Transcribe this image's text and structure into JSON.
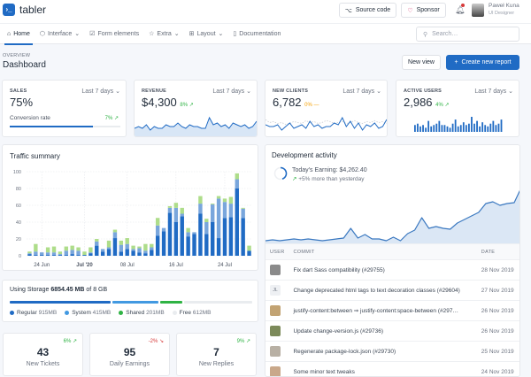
{
  "header": {
    "brand": "tabler",
    "source_code": "Source code",
    "sponsor": "Sponsor",
    "user_name": "Paweł Kuna",
    "user_role": "UI Designer"
  },
  "nav": {
    "items": [
      {
        "label": "Home",
        "active": true
      },
      {
        "label": "Interface",
        "dropdown": true
      },
      {
        "label": "Form elements"
      },
      {
        "label": "Extra",
        "dropdown": true
      },
      {
        "label": "Layout",
        "dropdown": true
      },
      {
        "label": "Documentation"
      }
    ],
    "search_placeholder": "Search…"
  },
  "page": {
    "pretitle": "OVERVIEW",
    "title": "Dashboard",
    "new_view": "New view",
    "create_report": "Create new report"
  },
  "colors": {
    "primary": "#206bc4",
    "primary_light": "#79a6dc",
    "green": "#2fb344",
    "light_green": "#aedd8a",
    "red": "#d63939",
    "orange": "#f59f00",
    "gray": "#e9ecef"
  },
  "stats": [
    {
      "label": "SALES",
      "range": "Last 7 days",
      "value": "75%",
      "sub_label": "Conversion rate",
      "change": "7%",
      "trend": "up",
      "progress": 75
    },
    {
      "label": "REVENUE",
      "range": "Last 7 days",
      "value": "$4,300",
      "change": "8%",
      "trend": "up",
      "spark": [
        4,
        5,
        4,
        6,
        3,
        5,
        4,
        4,
        6,
        5,
        5,
        7,
        5,
        4,
        6,
        5,
        5,
        4,
        4,
        10,
        6,
        7,
        5,
        6,
        4,
        7,
        6,
        5,
        6,
        4,
        5,
        8
      ]
    },
    {
      "label": "NEW CLIENTS",
      "range": "Last 7 days",
      "value": "6,782",
      "change": "0%",
      "trend": "flat",
      "spark": [
        6,
        5,
        5,
        6,
        3,
        5,
        7,
        4,
        5,
        6,
        4,
        8,
        5,
        6,
        4,
        5,
        5,
        7,
        6,
        10,
        5,
        8,
        4,
        7,
        3,
        6,
        5,
        7,
        4,
        5,
        9
      ],
      "spark2": [
        9,
        6,
        7,
        5,
        6,
        4,
        5,
        7,
        6,
        5,
        8,
        6,
        7,
        5,
        6,
        8,
        7,
        5,
        6,
        7,
        5,
        6,
        8,
        6,
        5,
        7,
        6,
        8,
        6,
        7,
        5
      ]
    },
    {
      "label": "ACTIVE USERS",
      "range": "Last 7 days",
      "value": "2,986",
      "change": "4%",
      "trend": "up",
      "bars": [
        5,
        6,
        4,
        5,
        3,
        8,
        4,
        5,
        6,
        8,
        5,
        5,
        4,
        3,
        6,
        9,
        4,
        5,
        7,
        5,
        6,
        11,
        6,
        8,
        4,
        7,
        5,
        4,
        6,
        8,
        5,
        6,
        9
      ]
    }
  ],
  "traffic": {
    "title": "Traffic summary",
    "chart_data": {
      "type": "bar",
      "stacked": true,
      "ylim": [
        0,
        100
      ],
      "yticks": [
        0,
        20,
        40,
        60,
        80,
        100
      ],
      "grid": true,
      "categories": [
        "2020-06-22",
        "2020-06-23",
        "2020-06-24",
        "2020-06-25",
        "2020-06-26",
        "2020-06-27",
        "2020-06-28",
        "2020-06-29",
        "2020-06-30",
        "2020-07-01",
        "2020-07-02",
        "2020-07-03",
        "2020-07-04",
        "2020-07-05",
        "2020-07-06",
        "2020-07-07",
        "2020-07-08",
        "2020-07-09",
        "2020-07-10",
        "2020-07-11",
        "2020-07-12",
        "2020-07-13",
        "2020-07-14",
        "2020-07-15",
        "2020-07-16",
        "2020-07-17",
        "2020-07-18",
        "2020-07-19",
        "2020-07-20",
        "2020-07-21",
        "2020-07-22",
        "2020-07-23",
        "2020-07-24",
        "2020-07-25",
        "2020-07-26",
        "2020-07-27",
        "2020-07-28"
      ],
      "xticks": [
        {
          "label": "24 Jun",
          "at": "2020-06-24"
        },
        {
          "label": "Jul '20",
          "at": "2020-07-01",
          "bold": true
        },
        {
          "label": "08 Jul",
          "at": "2020-07-08"
        },
        {
          "label": "16 Jul",
          "at": "2020-07-16"
        },
        {
          "label": "24 Jul",
          "at": "2020-07-24"
        }
      ],
      "series": [
        {
          "color": "#206bc4",
          "values": [
            2,
            1,
            1,
            1,
            1,
            1,
            1,
            2,
            1,
            1,
            3,
            12,
            5,
            8,
            21,
            5,
            8,
            6,
            4,
            3,
            7,
            24,
            29,
            51,
            40,
            47,
            23,
            26,
            50,
            26,
            40,
            21,
            45,
            46,
            80,
            45,
            6
          ]
        },
        {
          "color": "#79a6dc",
          "values": [
            1,
            4,
            3,
            3,
            3,
            1,
            5,
            5,
            5,
            0,
            1,
            5,
            3,
            2,
            7,
            8,
            6,
            2,
            5,
            3,
            3,
            12,
            4,
            6,
            17,
            3,
            5,
            2,
            12,
            14,
            21,
            47,
            19,
            16,
            11,
            11,
            0
          ]
        },
        {
          "color": "#aedd8a",
          "values": [
            2,
            9,
            0,
            6,
            7,
            3,
            5,
            5,
            4,
            4,
            6,
            3,
            0,
            8,
            3,
            5,
            7,
            4,
            2,
            8,
            4,
            9,
            0,
            2,
            6,
            7,
            5,
            0,
            9,
            4,
            1,
            3,
            4,
            8,
            7,
            1,
            6
          ]
        }
      ]
    }
  },
  "storage": {
    "prefix": "Using Storage",
    "used": "6854.45 MB",
    "suffix": "of 8 GB",
    "segments": [
      {
        "label": "Regular",
        "value": "915MB",
        "mb": 915,
        "color": "#206bc4"
      },
      {
        "label": "System",
        "value": "415MB",
        "mb": 415,
        "color": "#4299e1"
      },
      {
        "label": "Shared",
        "value": "201MB",
        "mb": 201,
        "color": "#2fb344"
      },
      {
        "label": "Free",
        "value": "612MB",
        "mb": 612,
        "color": "#e9ecef"
      }
    ]
  },
  "mini": [
    {
      "value": "43",
      "label": "New Tickets",
      "change": "6%",
      "trend": "up"
    },
    {
      "value": "95",
      "label": "Daily Earnings",
      "change": "-2%",
      "trend": "down"
    },
    {
      "value": "7",
      "label": "New Replies",
      "change": "9%",
      "trend": "up"
    }
  ],
  "dev": {
    "title": "Development activity",
    "earning": "Today's Earning: $4,262.40",
    "more": "+5% more than yesterday",
    "area": [
      2,
      3,
      2,
      3,
      4,
      3,
      4,
      3,
      2,
      3,
      4,
      5,
      16,
      5,
      9,
      4,
      4,
      2,
      6,
      2,
      10,
      14,
      28,
      16,
      18,
      16,
      15,
      22,
      26,
      30,
      34,
      44,
      46,
      42,
      44,
      45,
      62
    ],
    "columns": [
      "USER",
      "COMMIT",
      "DATE"
    ],
    "rows": [
      {
        "user": "",
        "commit": "Fix dart Sass compatibility (#29755)",
        "date": "28 Nov 2019",
        "avatar": "#8a8a8a"
      },
      {
        "user": "JL",
        "commit": "Change deprecated html tags to text decoration classes (#29604)",
        "date": "27 Nov 2019"
      },
      {
        "user": "",
        "commit": "justify-content:between ⇒ justify-content:space-between (#297…",
        "date": "26 Nov 2019",
        "avatar": "#c2a373"
      },
      {
        "user": "",
        "commit": "Update change-version.js (#29736)",
        "date": "26 Nov 2019",
        "avatar": "#7c8a5a"
      },
      {
        "user": "",
        "commit": "Regenerate package-lock.json (#29730)",
        "date": "25 Nov 2019",
        "avatar": "#b8b0a4"
      },
      {
        "user": "",
        "commit": "Some minor text tweaks",
        "date": "24 Nov 2019",
        "avatar": "#c9a88a"
      }
    ]
  }
}
